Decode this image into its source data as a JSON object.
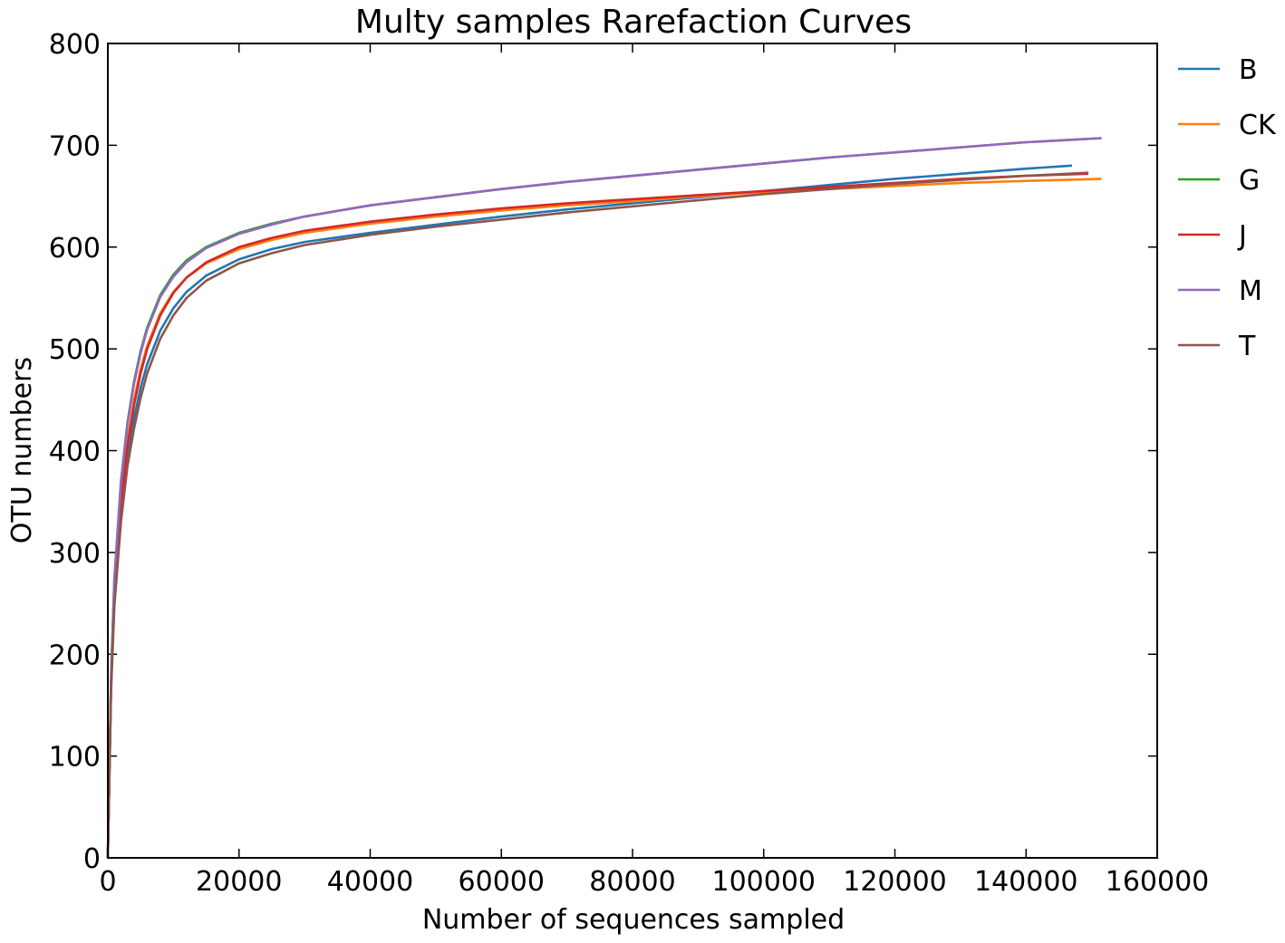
{
  "chart_data": {
    "type": "line",
    "title": "Multy samples Rarefaction Curves",
    "xlabel": "Number of sequences sampled",
    "ylabel": "OTU numbers",
    "xlim": [
      0,
      160000
    ],
    "ylim": [
      0,
      800
    ],
    "xticks": [
      0,
      20000,
      40000,
      60000,
      80000,
      100000,
      120000,
      140000,
      160000
    ],
    "yticks": [
      0,
      100,
      200,
      300,
      400,
      500,
      600,
      700,
      800
    ],
    "grid": false,
    "legend_position": "right (outside plot)",
    "series": [
      {
        "name": "B",
        "color": "#1f77b4",
        "points": [
          [
            0,
            0
          ],
          [
            500,
            170
          ],
          [
            1000,
            255
          ],
          [
            2000,
            340
          ],
          [
            3000,
            395
          ],
          [
            4000,
            432
          ],
          [
            5000,
            462
          ],
          [
            6000,
            485
          ],
          [
            8000,
            518
          ],
          [
            10000,
            540
          ],
          [
            12000,
            556
          ],
          [
            15000,
            572
          ],
          [
            20000,
            588
          ],
          [
            25000,
            598
          ],
          [
            30000,
            605
          ],
          [
            40000,
            614
          ],
          [
            50000,
            622
          ],
          [
            60000,
            630
          ],
          [
            70000,
            637
          ],
          [
            80000,
            643
          ],
          [
            90000,
            649
          ],
          [
            100000,
            655
          ],
          [
            110000,
            661
          ],
          [
            120000,
            667
          ],
          [
            130000,
            672
          ],
          [
            140000,
            677
          ],
          [
            147000,
            680
          ]
        ]
      },
      {
        "name": "CK",
        "color": "#ff7f0e",
        "points": [
          [
            0,
            0
          ],
          [
            500,
            175
          ],
          [
            1000,
            265
          ],
          [
            2000,
            355
          ],
          [
            3000,
            410
          ],
          [
            4000,
            450
          ],
          [
            5000,
            480
          ],
          [
            6000,
            503
          ],
          [
            8000,
            535
          ],
          [
            10000,
            556
          ],
          [
            12000,
            570
          ],
          [
            15000,
            584
          ],
          [
            20000,
            598
          ],
          [
            25000,
            607
          ],
          [
            30000,
            614
          ],
          [
            40000,
            623
          ],
          [
            50000,
            630
          ],
          [
            60000,
            636
          ],
          [
            70000,
            641
          ],
          [
            80000,
            645
          ],
          [
            90000,
            650
          ],
          [
            100000,
            654
          ],
          [
            110000,
            657
          ],
          [
            120000,
            660
          ],
          [
            130000,
            663
          ],
          [
            140000,
            665
          ],
          [
            151500,
            667
          ]
        ]
      },
      {
        "name": "G",
        "color": "#2ca02c",
        "points": [
          [
            0,
            0
          ],
          [
            500,
            180
          ],
          [
            1000,
            275
          ],
          [
            2000,
            370
          ],
          [
            3000,
            428
          ],
          [
            4000,
            468
          ],
          [
            5000,
            498
          ],
          [
            6000,
            521
          ],
          [
            8000,
            553
          ],
          [
            10000,
            573
          ],
          [
            12000,
            587
          ],
          [
            15000,
            600
          ],
          [
            20000,
            614
          ],
          [
            25000,
            623
          ],
          [
            30000,
            630
          ],
          [
            40000,
            641
          ],
          [
            50000,
            649
          ],
          [
            60000,
            657
          ],
          [
            70000,
            664
          ],
          [
            80000,
            670
          ],
          [
            90000,
            676
          ],
          [
            100000,
            682
          ],
          [
            110000,
            688
          ],
          [
            120000,
            693
          ],
          [
            130000,
            698
          ],
          [
            140000,
            703
          ],
          [
            151500,
            707
          ]
        ]
      },
      {
        "name": "J",
        "color": "#d62728",
        "points": [
          [
            0,
            0
          ],
          [
            500,
            172
          ],
          [
            1000,
            260
          ],
          [
            2000,
            350
          ],
          [
            3000,
            405
          ],
          [
            4000,
            445
          ],
          [
            5000,
            476
          ],
          [
            6000,
            500
          ],
          [
            8000,
            533
          ],
          [
            10000,
            555
          ],
          [
            12000,
            570
          ],
          [
            15000,
            585
          ],
          [
            20000,
            600
          ],
          [
            25000,
            609
          ],
          [
            30000,
            616
          ],
          [
            40000,
            625
          ],
          [
            50000,
            632
          ],
          [
            60000,
            638
          ],
          [
            70000,
            643
          ],
          [
            80000,
            647
          ],
          [
            90000,
            651
          ],
          [
            100000,
            655
          ],
          [
            110000,
            659
          ],
          [
            120000,
            663
          ],
          [
            130000,
            667
          ],
          [
            140000,
            670
          ],
          [
            149500,
            672
          ]
        ]
      },
      {
        "name": "M",
        "color": "#9467bd",
        "points": [
          [
            0,
            0
          ],
          [
            500,
            180
          ],
          [
            1000,
            274
          ],
          [
            2000,
            368
          ],
          [
            3000,
            426
          ],
          [
            4000,
            466
          ],
          [
            5000,
            496
          ],
          [
            6000,
            519
          ],
          [
            8000,
            551
          ],
          [
            10000,
            571
          ],
          [
            12000,
            585
          ],
          [
            15000,
            599
          ],
          [
            20000,
            613
          ],
          [
            25000,
            622
          ],
          [
            30000,
            630
          ],
          [
            40000,
            641
          ],
          [
            50000,
            649
          ],
          [
            60000,
            657
          ],
          [
            70000,
            664
          ],
          [
            80000,
            670
          ],
          [
            90000,
            676
          ],
          [
            100000,
            682
          ],
          [
            110000,
            688
          ],
          [
            120000,
            693
          ],
          [
            130000,
            698
          ],
          [
            140000,
            703
          ],
          [
            151500,
            707
          ]
        ]
      },
      {
        "name": "T",
        "color": "#8c564b",
        "points": [
          [
            0,
            0
          ],
          [
            500,
            165
          ],
          [
            1000,
            248
          ],
          [
            2000,
            330
          ],
          [
            3000,
            385
          ],
          [
            4000,
            422
          ],
          [
            5000,
            452
          ],
          [
            6000,
            476
          ],
          [
            8000,
            510
          ],
          [
            10000,
            533
          ],
          [
            12000,
            550
          ],
          [
            15000,
            567
          ],
          [
            20000,
            584
          ],
          [
            25000,
            594
          ],
          [
            30000,
            602
          ],
          [
            40000,
            612
          ],
          [
            50000,
            620
          ],
          [
            60000,
            627
          ],
          [
            70000,
            634
          ],
          [
            80000,
            640
          ],
          [
            90000,
            646
          ],
          [
            100000,
            652
          ],
          [
            110000,
            657
          ],
          [
            120000,
            662
          ],
          [
            130000,
            666
          ],
          [
            140000,
            670
          ],
          [
            149500,
            673
          ]
        ]
      }
    ]
  }
}
